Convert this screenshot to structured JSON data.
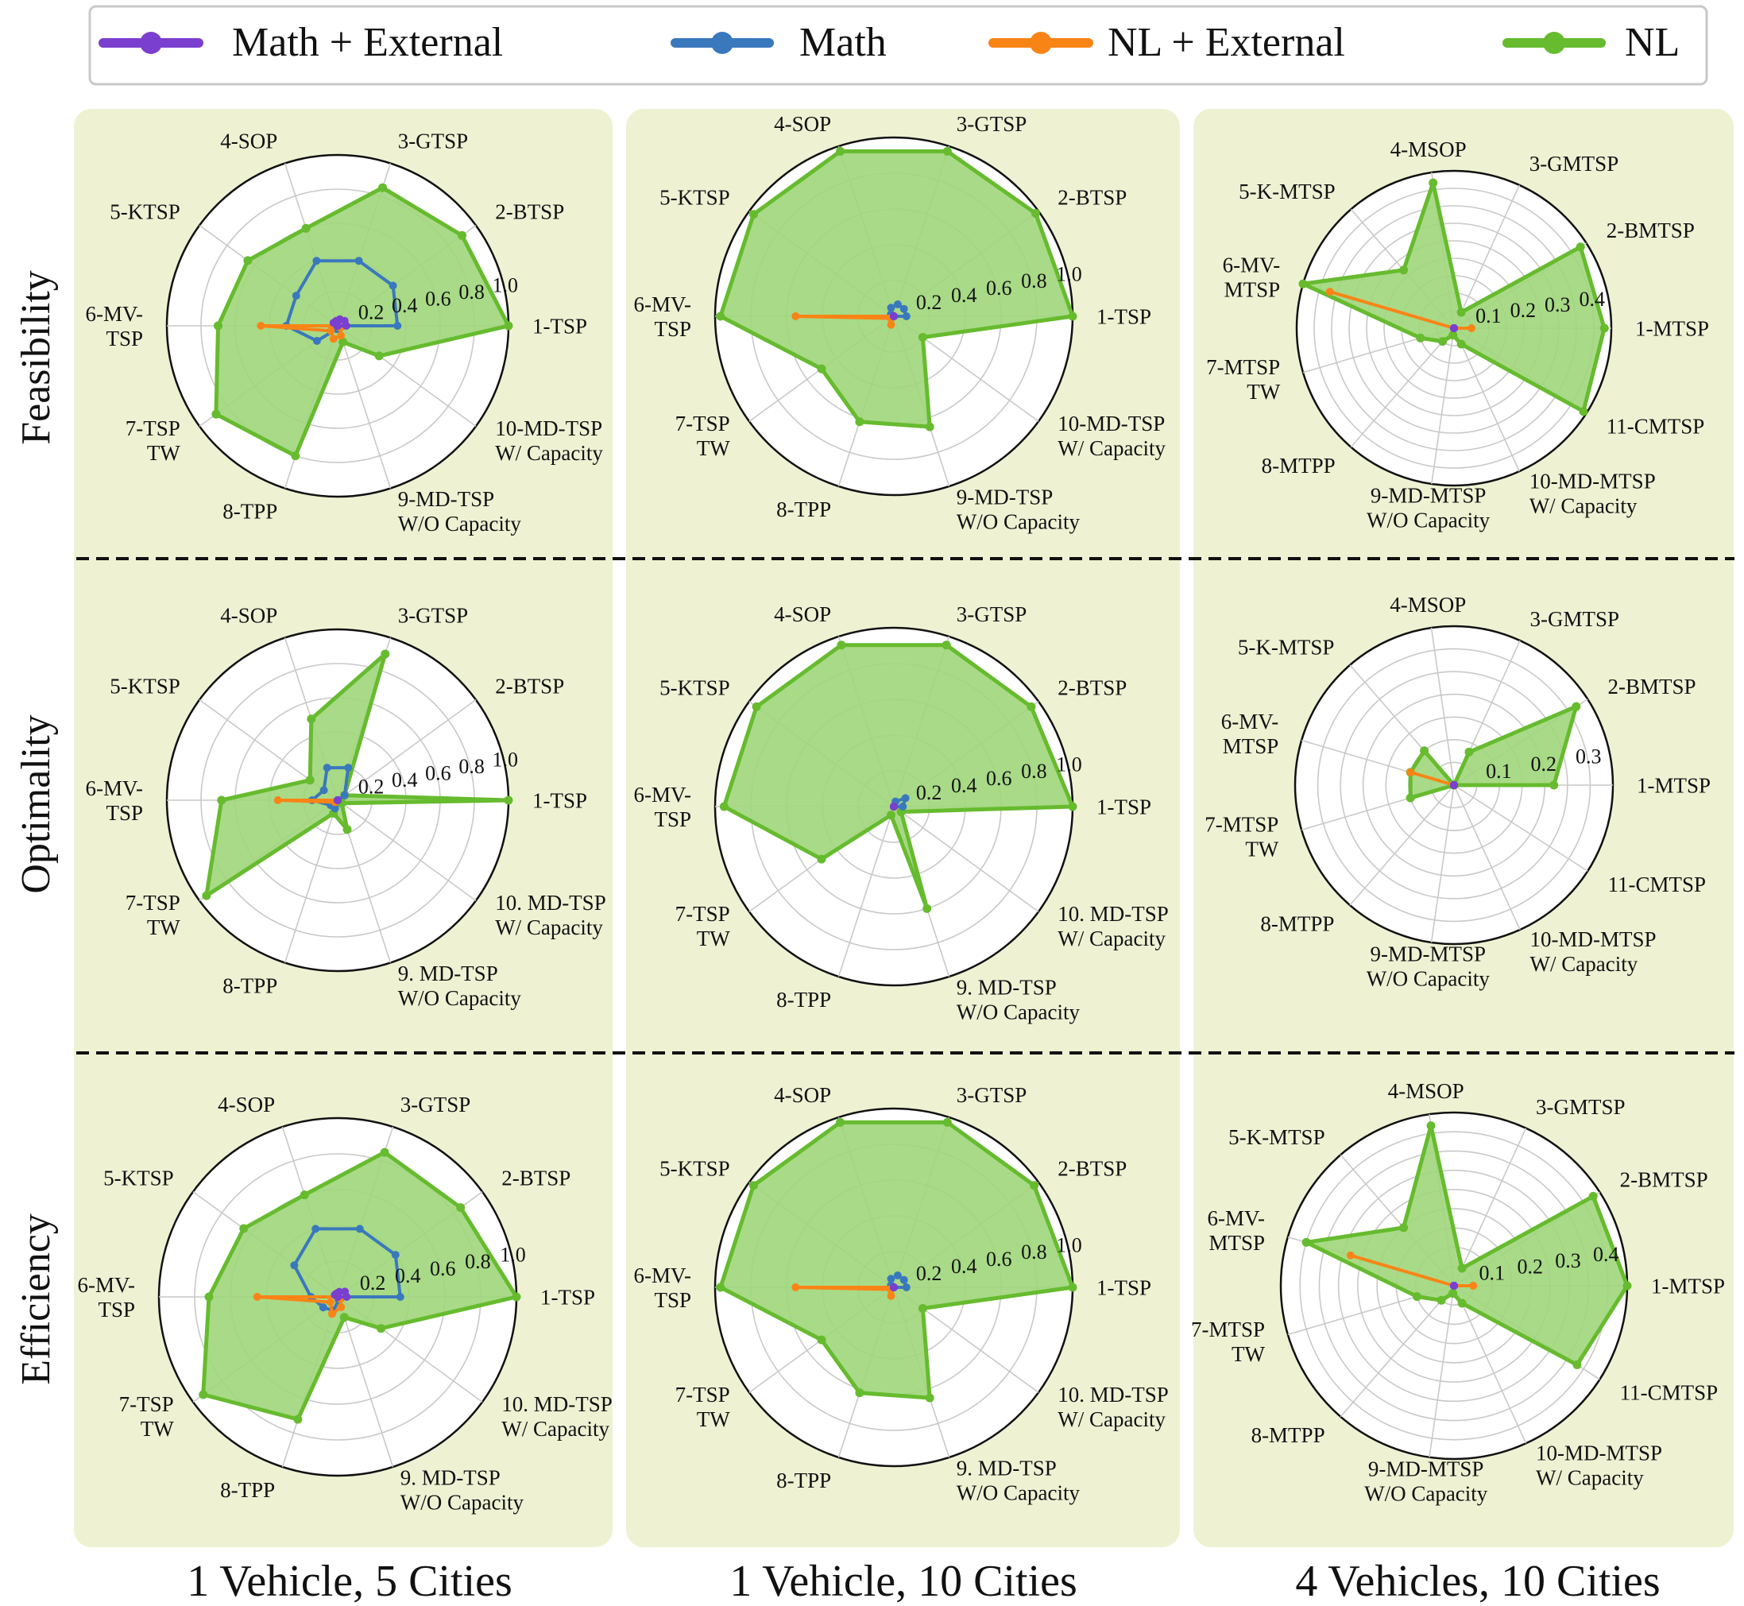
{
  "colors": {
    "math_external": "#7b3fcf",
    "math": "#3a78bd",
    "nl_external": "#f98416",
    "nl": "#66bb2e",
    "nl_fill": "#9ed67a",
    "panel_bg": "#eef2d3"
  },
  "legend": {
    "items": [
      {
        "key": "math_external",
        "label": "Math + External"
      },
      {
        "key": "math",
        "label": "Math"
      },
      {
        "key": "nl_external",
        "label": "NL + External"
      },
      {
        "key": "nl",
        "label": "NL"
      }
    ]
  },
  "row_labels": [
    "Feasibility",
    "Optimality",
    "Efficiency"
  ],
  "column_labels": [
    "1 Vehicle, 5 Cities",
    "1 Vehicle, 10 Cities",
    "4 Vehicles, 10 Cities"
  ],
  "chart_data": [
    {
      "type": "radar",
      "row": "Feasibility",
      "column": "1 Vehicle, 5 Cities",
      "categories": [
        "1-TSP",
        "2-BTSP",
        "3-GTSP",
        "4-SOP",
        "5-KTSP",
        "6-MV-\nTSP",
        "7-TSP\nTW",
        "8-TPP",
        "9-MD-TSP\nW/O Capacity",
        "10-MD-TSP\nW/ Capacity"
      ],
      "rmax": 1.0,
      "ticks": [
        0.2,
        0.4,
        0.6,
        0.8,
        1.0
      ],
      "tick_labels": [
        "0.2",
        "0.4",
        "0.6",
        "0.8",
        "1.0"
      ],
      "series": [
        {
          "name": "NL",
          "values": [
            1.0,
            0.9,
            0.85,
            0.6,
            0.65,
            0.7,
            0.88,
            0.8,
            0.1,
            0.3
          ]
        },
        {
          "name": "Math",
          "values": [
            0.35,
            0.4,
            0.4,
            0.4,
            0.3,
            0.3,
            0.15,
            0.02,
            0.02,
            0.0
          ]
        },
        {
          "name": "NL + External",
          "values": [
            0.0,
            0.0,
            0.0,
            0.0,
            0.0,
            0.45,
            0.05,
            0.08,
            0.06,
            0.02
          ]
        },
        {
          "name": "Math + External",
          "values": [
            0.05,
            0.05,
            0.04,
            0.03,
            0.03,
            0.0,
            0.0,
            0.0,
            0.0,
            0.0
          ]
        }
      ]
    },
    {
      "type": "radar",
      "row": "Feasibility",
      "column": "1 Vehicle, 10 Cities",
      "categories": [
        "1-TSP",
        "2-BTSP",
        "3-GTSP",
        "4-SOP",
        "5-KTSP",
        "6-MV-\nTSP",
        "7-TSP\nTW",
        "8-TPP",
        "9-MD-TSP\nW/O Capacity",
        "10-MD-TSP\nW/ Capacity"
      ],
      "rmax": 1.0,
      "ticks": [
        0.2,
        0.4,
        0.6,
        0.8,
        1.0
      ],
      "tick_labels": [
        "0.2",
        "0.4",
        "0.6",
        "0.8",
        "1.0"
      ],
      "series": [
        {
          "name": "NL",
          "values": [
            1.0,
            0.98,
            0.97,
            0.97,
            0.97,
            0.97,
            0.5,
            0.62,
            0.65,
            0.2
          ]
        },
        {
          "name": "Math",
          "values": [
            0.07,
            0.07,
            0.07,
            0.05,
            0.02,
            0.02,
            0.0,
            0.0,
            0.0,
            0.0
          ]
        },
        {
          "name": "NL + External",
          "values": [
            0.0,
            0.0,
            0.0,
            0.0,
            0.0,
            0.55,
            0.02,
            0.05,
            0.0,
            0.0
          ]
        },
        {
          "name": "Math + External",
          "values": [
            0.0,
            0.0,
            0.0,
            0.0,
            0.0,
            0.0,
            0.0,
            0.0,
            0.0,
            0.0
          ]
        }
      ]
    },
    {
      "type": "radar",
      "row": "Feasibility",
      "column": "4 Vehicles, 10 Cities",
      "categories": [
        "1-MTSP",
        "2-BMTSP",
        "3-GMTSP",
        "4-MSOP",
        "5-K-MTSP",
        "6-MV-\nMTSP",
        "7-MTSP\nTW",
        "8-MTPP",
        "9-MD-MTSP\nW/O Capacity",
        "10-MD-MTSP\nW/ Capacity",
        "11-CMTSP"
      ],
      "rmax": 0.45,
      "ticks": [
        0.05,
        0.1,
        0.15,
        0.2,
        0.25,
        0.3,
        0.35,
        0.4,
        0.45
      ],
      "tick_labels": [
        "",
        "0.1",
        "",
        "0.2",
        "",
        "0.3",
        "",
        "0.4",
        ""
      ],
      "series": [
        {
          "name": "NL",
          "values": [
            0.43,
            0.43,
            0.05,
            0.42,
            0.22,
            0.45,
            0.1,
            0.05,
            0.02,
            0.05,
            0.44
          ]
        },
        {
          "name": "Math",
          "values": [
            0.0,
            0.0,
            0.0,
            0.0,
            0.0,
            0.0,
            0.0,
            0.0,
            0.0,
            0.0,
            0.0
          ]
        },
        {
          "name": "NL + External",
          "values": [
            0.05,
            0.0,
            0.0,
            0.0,
            0.0,
            0.37,
            0.0,
            0.0,
            0.0,
            0.0,
            0.0
          ]
        },
        {
          "name": "Math + External",
          "values": [
            0.0,
            0.0,
            0.0,
            0.0,
            0.0,
            0.0,
            0.0,
            0.0,
            0.0,
            0.0,
            0.0
          ]
        }
      ]
    },
    {
      "type": "radar",
      "row": "Optimality",
      "column": "1 Vehicle, 5 Cities",
      "categories": [
        "1-TSP",
        "2-BTSP",
        "3-GTSP",
        "4-SOP",
        "5-KTSP",
        "6-MV-\nTSP",
        "7-TSP\nTW",
        "8-TPP",
        "9. MD-TSP\nW/O Capacity",
        "10. MD-TSP\nW/ Capacity"
      ],
      "rmax": 1.0,
      "ticks": [
        0.2,
        0.4,
        0.6,
        0.8,
        1.0
      ],
      "tick_labels": [
        "0.2",
        "0.4",
        "0.6",
        "0.8",
        "1.0"
      ],
      "series": [
        {
          "name": "NL",
          "values": [
            1.0,
            0.05,
            0.9,
            0.5,
            0.2,
            0.68,
            0.95,
            0.08,
            0.18,
            0.03
          ]
        },
        {
          "name": "Math",
          "values": [
            0.0,
            0.05,
            0.2,
            0.2,
            0.1,
            0.15,
            0.05,
            0.05,
            0.0,
            0.0
          ]
        },
        {
          "name": "NL + External",
          "values": [
            0.0,
            0.0,
            0.0,
            0.0,
            0.0,
            0.35,
            0.02,
            0.0,
            0.0,
            0.0
          ]
        },
        {
          "name": "Math + External",
          "values": [
            0.0,
            0.0,
            0.0,
            0.0,
            0.0,
            0.0,
            0.0,
            0.0,
            0.0,
            0.0
          ]
        }
      ]
    },
    {
      "type": "radar",
      "row": "Optimality",
      "column": "1 Vehicle, 10 Cities",
      "categories": [
        "1-TSP",
        "2-BTSP",
        "3-GTSP",
        "4-SOP",
        "5-KTSP",
        "6-MV-\nTSP",
        "7-TSP\nTW",
        "8-TPP",
        "9. MD-TSP\nW/O Capacity",
        "10. MD-TSP\nW/ Capacity"
      ],
      "rmax": 1.0,
      "ticks": [
        0.2,
        0.4,
        0.6,
        0.8,
        1.0
      ],
      "tick_labels": [
        "0.2",
        "0.4",
        "0.6",
        "0.8",
        "1.0"
      ],
      "series": [
        {
          "name": "NL",
          "values": [
            1.0,
            0.95,
            0.95,
            0.95,
            0.95,
            0.95,
            0.5,
            0.05,
            0.6,
            0.05
          ]
        },
        {
          "name": "Math",
          "values": [
            0.05,
            0.08,
            0.03,
            0.0,
            0.0,
            0.0,
            0.0,
            0.0,
            0.0,
            0.0
          ]
        },
        {
          "name": "NL + External",
          "values": [
            0.0,
            0.0,
            0.0,
            0.0,
            0.0,
            0.0,
            0.0,
            0.0,
            0.0,
            0.0
          ]
        },
        {
          "name": "Math + External",
          "values": [
            0.0,
            0.0,
            0.0,
            0.0,
            0.0,
            0.0,
            0.0,
            0.0,
            0.0,
            0.0
          ]
        }
      ]
    },
    {
      "type": "radar",
      "row": "Optimality",
      "column": "4 Vehicles, 10 Cities",
      "categories": [
        "1-MTSP",
        "2-BMTSP",
        "3-GMTSP",
        "4-MSOP",
        "5-K-MTSP",
        "6-MV-\nMTSP",
        "7-MTSP\nTW",
        "8-MTPP",
        "9-MD-MTSP\nW/O Capacity",
        "10-MD-MTSP\nW/ Capacity",
        "11-CMTSP"
      ],
      "rmax": 0.35,
      "ticks": [
        0.05,
        0.1,
        0.15,
        0.2,
        0.25,
        0.3,
        0.35
      ],
      "tick_labels": [
        "",
        "0.1",
        "",
        "0.2",
        "",
        "0.3",
        ""
      ],
      "series": [
        {
          "name": "NL",
          "values": [
            0.22,
            0.32,
            0.08,
            0.0,
            0.1,
            0.1,
            0.1,
            0.0,
            0.0,
            0.0,
            0.0
          ]
        },
        {
          "name": "Math",
          "values": [
            0.0,
            0.0,
            0.0,
            0.0,
            0.0,
            0.0,
            0.0,
            0.0,
            0.0,
            0.0,
            0.0
          ]
        },
        {
          "name": "NL + External",
          "values": [
            0.0,
            0.0,
            0.0,
            0.0,
            0.0,
            0.1,
            0.0,
            0.0,
            0.0,
            0.0,
            0.0
          ]
        },
        {
          "name": "Math + External",
          "values": [
            0.0,
            0.0,
            0.0,
            0.0,
            0.0,
            0.0,
            0.0,
            0.0,
            0.0,
            0.0,
            0.0
          ]
        }
      ]
    },
    {
      "type": "radar",
      "row": "Efficiency",
      "column": "1 Vehicle, 5 Cities",
      "categories": [
        "1-TSP",
        "2-BTSP",
        "3-GTSP",
        "4-SOP",
        "5-KTSP",
        "6-MV-\nTSP",
        "7-TSP\nTW",
        "8-TPP",
        "9. MD-TSP\nW/O Capacity",
        "10. MD-TSP\nW/ Capacity"
      ],
      "rmax": 1.0,
      "ticks": [
        0.2,
        0.4,
        0.6,
        0.8,
        1.0
      ],
      "tick_labels": [
        "0.2",
        "0.4",
        "0.6",
        "0.8",
        "1.0"
      ],
      "series": [
        {
          "name": "NL",
          "values": [
            1.0,
            0.85,
            0.85,
            0.6,
            0.65,
            0.72,
            0.93,
            0.72,
            0.12,
            0.3
          ]
        },
        {
          "name": "Math",
          "values": [
            0.35,
            0.4,
            0.4,
            0.4,
            0.3,
            0.15,
            0.1,
            0.08,
            0.02,
            0.0
          ]
        },
        {
          "name": "NL + External",
          "values": [
            0.0,
            0.0,
            0.0,
            0.0,
            0.0,
            0.45,
            0.05,
            0.1,
            0.06,
            0.02
          ]
        },
        {
          "name": "Math + External",
          "values": [
            0.05,
            0.05,
            0.03,
            0.02,
            0.02,
            0.0,
            0.0,
            0.0,
            0.0,
            0.0
          ]
        }
      ]
    },
    {
      "type": "radar",
      "row": "Efficiency",
      "column": "1 Vehicle, 10 Cities",
      "categories": [
        "1-TSP",
        "2-BTSP",
        "3-GTSP",
        "4-SOP",
        "5-KTSP",
        "6-MV-\nTSP",
        "7-TSP\nTW",
        "8-TPP",
        "9. MD-TSP\nW/O Capacity",
        "10. MD-TSP\nW/ Capacity"
      ],
      "rmax": 1.0,
      "ticks": [
        0.2,
        0.4,
        0.6,
        0.8,
        1.0
      ],
      "tick_labels": [
        "0.2",
        "0.4",
        "0.6",
        "0.8",
        "1.0"
      ],
      "series": [
        {
          "name": "NL",
          "values": [
            1.0,
            0.97,
            0.97,
            0.97,
            0.97,
            0.97,
            0.5,
            0.62,
            0.65,
            0.2
          ]
        },
        {
          "name": "Math",
          "values": [
            0.07,
            0.07,
            0.07,
            0.05,
            0.02,
            0.02,
            0.0,
            0.0,
            0.0,
            0.0
          ]
        },
        {
          "name": "NL + External",
          "values": [
            0.0,
            0.0,
            0.0,
            0.0,
            0.0,
            0.55,
            0.02,
            0.05,
            0.0,
            0.0
          ]
        },
        {
          "name": "Math + External",
          "values": [
            0.0,
            0.0,
            0.0,
            0.0,
            0.0,
            0.0,
            0.0,
            0.0,
            0.0,
            0.0
          ]
        }
      ]
    },
    {
      "type": "radar",
      "row": "Efficiency",
      "column": "4 Vehicles, 10 Cities",
      "categories": [
        "1-MTSP",
        "2-BMTSP",
        "3-GMTSP",
        "4-MSOP",
        "5-K-MTSP",
        "6-MV-\nMTSP",
        "7-MTSP\nTW",
        "8-MTPP",
        "9-MD-MTSP\nW/O Capacity",
        "10-MD-MTSP\nW/ Capacity",
        "11-CMTSP"
      ],
      "rmax": 0.45,
      "ticks": [
        0.05,
        0.1,
        0.15,
        0.2,
        0.25,
        0.3,
        0.35,
        0.4,
        0.45
      ],
      "tick_labels": [
        "",
        "0.1",
        "",
        "0.2",
        "",
        "0.3",
        "",
        "0.4",
        ""
      ],
      "series": [
        {
          "name": "NL",
          "values": [
            0.45,
            0.43,
            0.05,
            0.42,
            0.2,
            0.4,
            0.1,
            0.05,
            0.02,
            0.05,
            0.38
          ]
        },
        {
          "name": "Math",
          "values": [
            0.0,
            0.0,
            0.0,
            0.0,
            0.0,
            0.0,
            0.0,
            0.0,
            0.0,
            0.0,
            0.0
          ]
        },
        {
          "name": "NL + External",
          "values": [
            0.05,
            0.0,
            0.0,
            0.0,
            0.0,
            0.28,
            0.0,
            0.0,
            0.0,
            0.0,
            0.0
          ]
        },
        {
          "name": "Math + External",
          "values": [
            0.0,
            0.0,
            0.0,
            0.0,
            0.0,
            0.0,
            0.0,
            0.0,
            0.0,
            0.0,
            0.0
          ]
        }
      ]
    }
  ]
}
